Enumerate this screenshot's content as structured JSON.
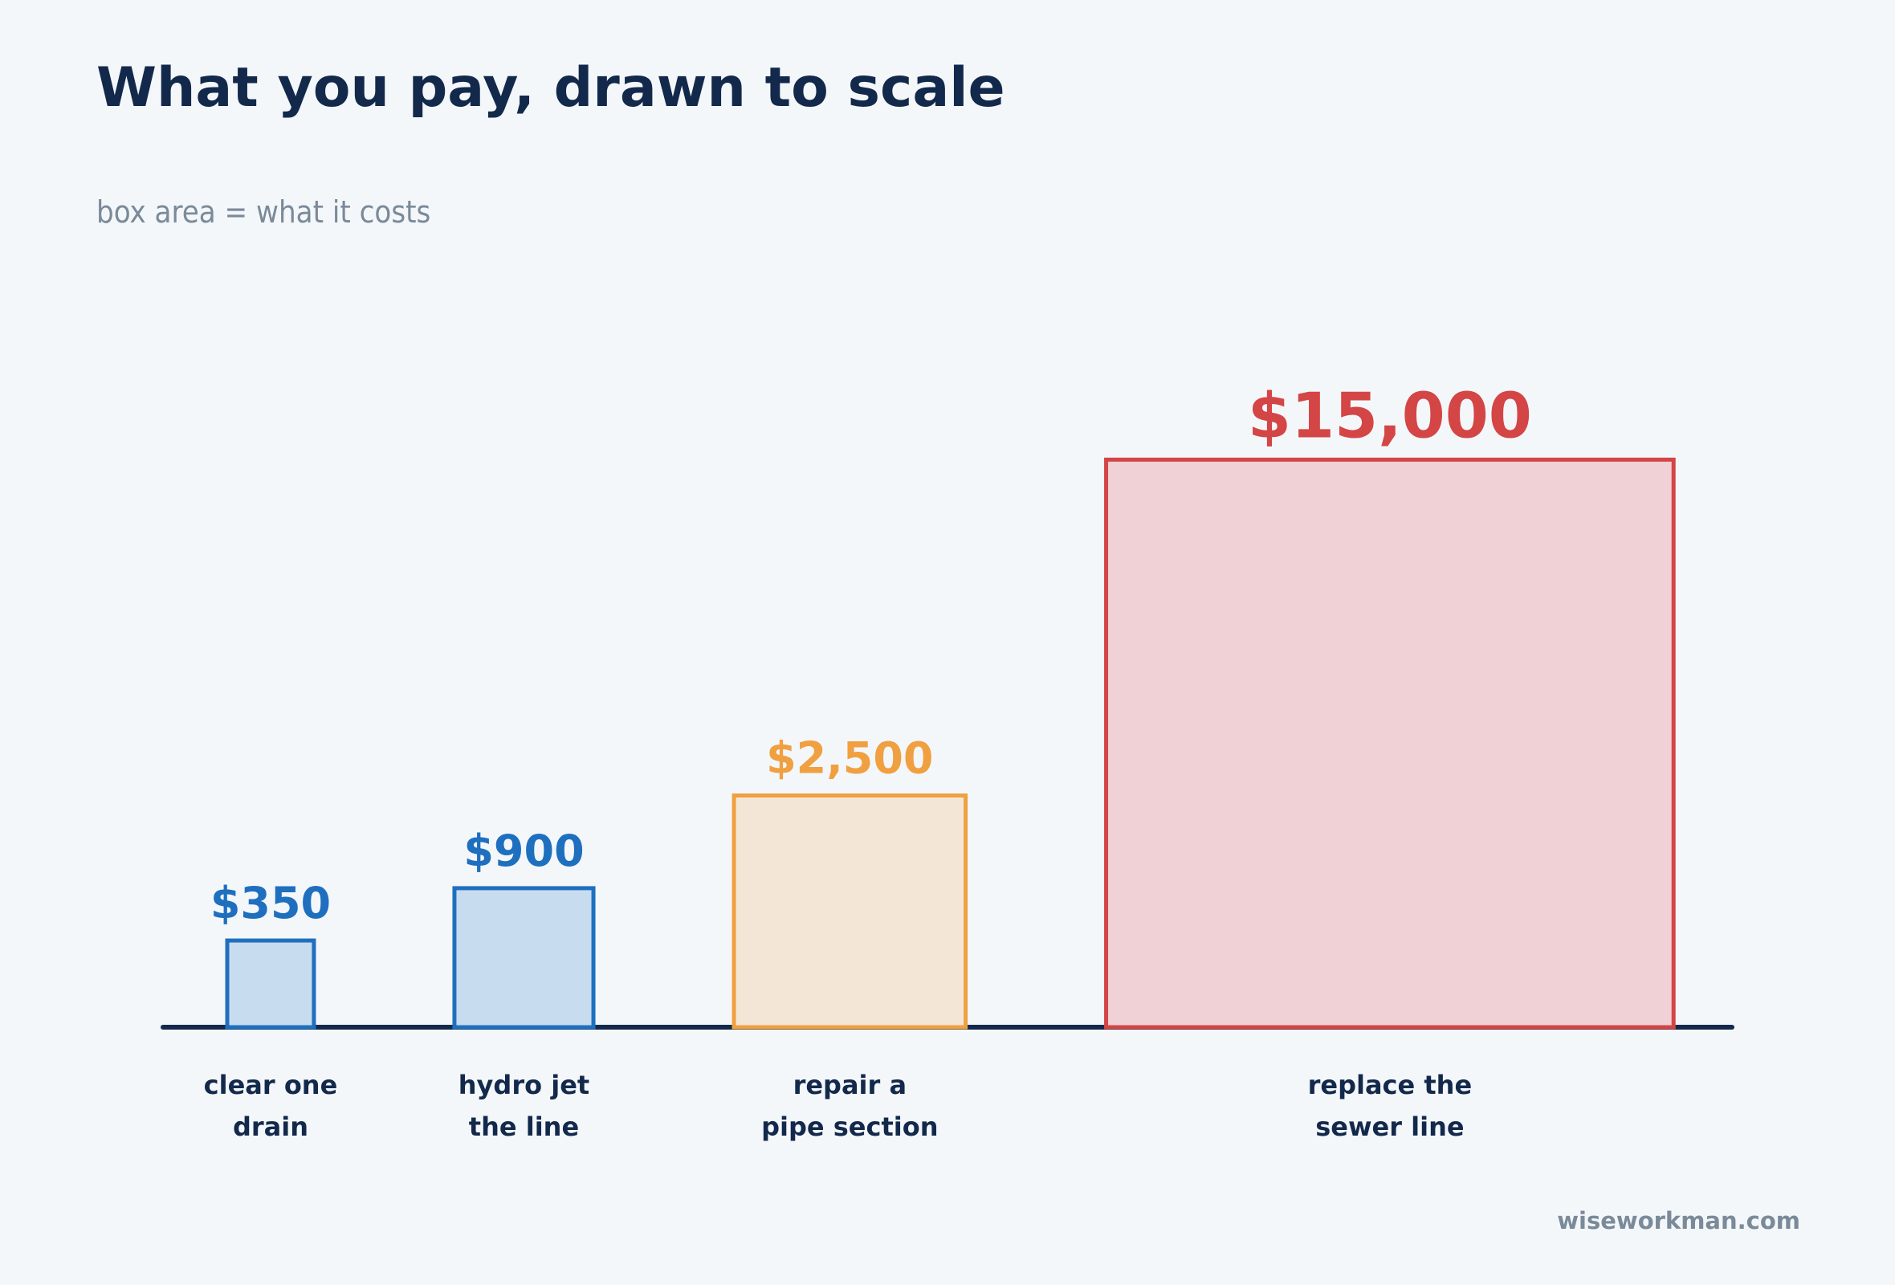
{
  "chart_data": {
    "type": "squares",
    "title": "What you pay, drawn to scale",
    "subtitle": "box area = what it costs",
    "categories": [
      "clear one\ndrain",
      "hydro jet\nthe line",
      "repair a\npipe section",
      "replace the\nsewer line"
    ],
    "values": [
      350,
      900,
      2500,
      15000
    ],
    "value_labels": [
      "$350",
      "$900",
      "$2,500",
      "$15,000"
    ],
    "colors": [
      "#1f6fbf",
      "#1f6fbf",
      "#f0a040",
      "#d44545"
    ],
    "fill_colors": [
      "#c8dcf0",
      "#c8dcf0",
      "#f4e6d6",
      "#f0d2d6"
    ],
    "source": "wiseworkman.com"
  }
}
